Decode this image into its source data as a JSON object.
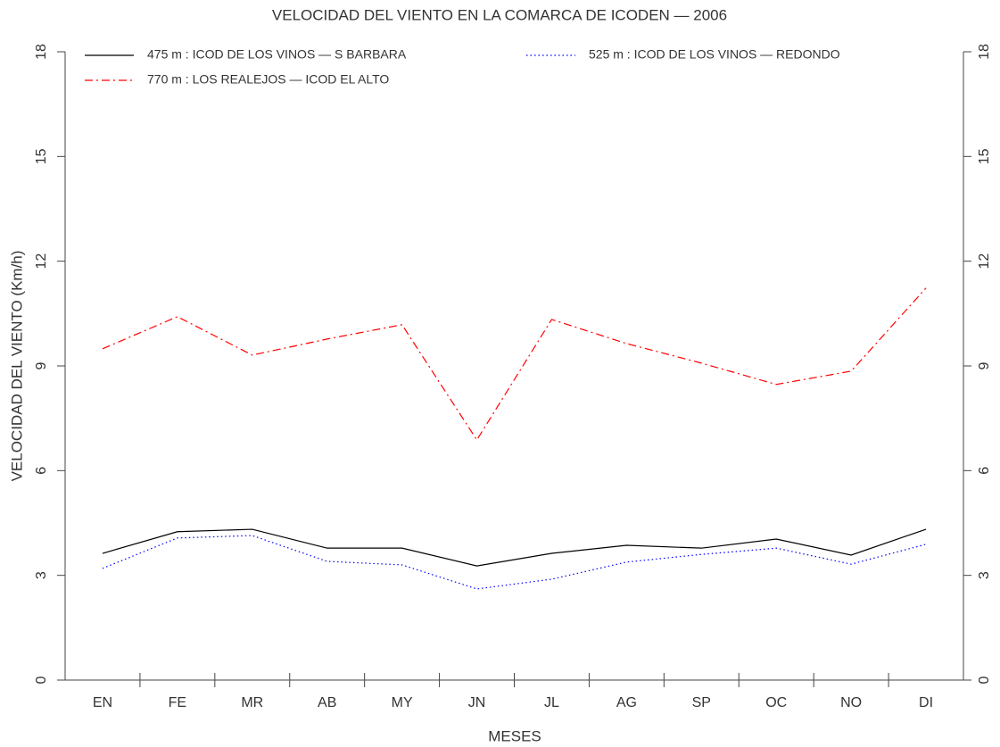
{
  "chart_data": {
    "type": "line",
    "title": "VELOCIDAD DEL VIENTO EN LA COMARCA DE ICODEN — 2006",
    "x_label": "MESES",
    "y_label": "VELOCIDAD DEL VIENTO (Km/h)",
    "categories": [
      "EN",
      "FE",
      "MR",
      "AB",
      "MY",
      "JN",
      "JL",
      "AG",
      "SP",
      "OC",
      "NO",
      "DI"
    ],
    "series": [
      {
        "name": "475 m : ICOD DE LOS VINOS — S BARBARA",
        "color": "#000000",
        "dash": "solid",
        "values": [
          3.63,
          4.25,
          4.32,
          3.78,
          3.78,
          3.27,
          3.63,
          3.86,
          3.78,
          4.04,
          3.58,
          4.32
        ]
      },
      {
        "name": "525 m : ICOD DE LOS VINOS — REDONDO",
        "color": "#0000ff",
        "dash": "dotted",
        "values": [
          3.2,
          4.07,
          4.14,
          3.4,
          3.3,
          2.61,
          2.89,
          3.38,
          3.6,
          3.78,
          3.32,
          3.89
        ]
      },
      {
        "name": "770 m : LOS REALEJOS — ICOD EL ALTO",
        "color": "#ff0000",
        "dash": "dashdot",
        "values": [
          9.49,
          10.41,
          9.31,
          9.77,
          10.18,
          6.88,
          10.33,
          9.64,
          9.08,
          8.47,
          8.85,
          11.23
        ]
      }
    ],
    "ylim": [
      0,
      18
    ],
    "yticks": [
      0,
      3,
      6,
      9,
      12,
      15,
      18
    ],
    "y2lim": [
      0,
      18
    ],
    "y2ticks": [
      0,
      3,
      6,
      9,
      12,
      15,
      18
    ],
    "grid": false
  }
}
